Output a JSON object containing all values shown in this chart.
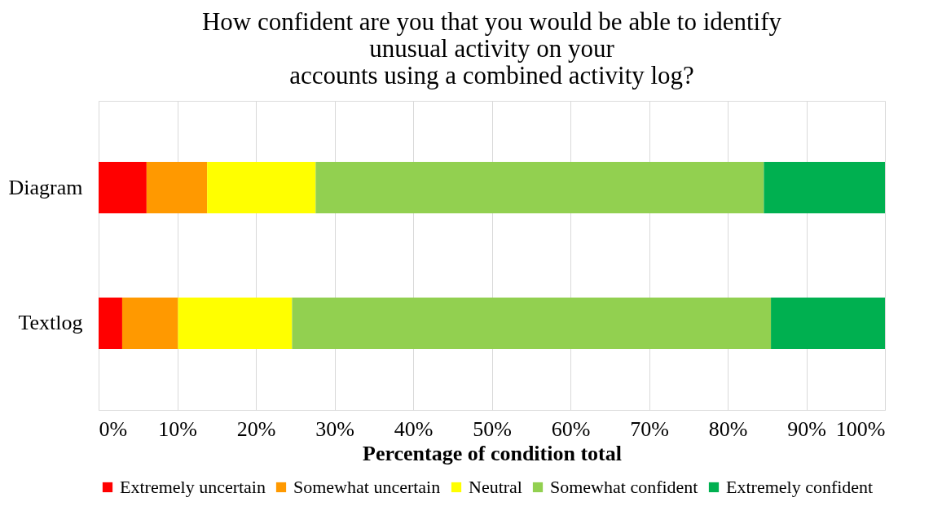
{
  "chart_data": {
    "type": "bar",
    "orientation": "horizontal",
    "stacked": true,
    "title": [
      "How confident are you that you would be able to identify",
      "unusual activity on your",
      "accounts using a combined activity log?"
    ],
    "xlabel": "Percentage  of  condition  total",
    "categories": [
      "Diagram",
      "Textlog"
    ],
    "series": [
      {
        "name": "Extremely uncertain",
        "color": "#ff0000",
        "values": [
          6.1,
          3.0
        ]
      },
      {
        "name": "Somewhat uncertain",
        "color": "#ff9900",
        "values": [
          7.7,
          7.1
        ]
      },
      {
        "name": "Neutral",
        "color": "#ffff00",
        "values": [
          13.8,
          14.5
        ]
      },
      {
        "name": "Somewhat confident",
        "color": "#92d050",
        "values": [
          57.0,
          60.9
        ]
      },
      {
        "name": "Extremely confident",
        "color": "#00b050",
        "values": [
          15.4,
          14.5
        ]
      }
    ],
    "xlim": [
      0,
      100
    ],
    "xticks": [
      {
        "value": 0,
        "label": "0%"
      },
      {
        "value": 10,
        "label": "10%"
      },
      {
        "value": 20,
        "label": "20%"
      },
      {
        "value": 30,
        "label": "30%"
      },
      {
        "value": 40,
        "label": "40%"
      },
      {
        "value": 50,
        "label": "50%"
      },
      {
        "value": 60,
        "label": "60%"
      },
      {
        "value": 70,
        "label": "70%"
      },
      {
        "value": 80,
        "label": "80%"
      },
      {
        "value": 90,
        "label": "90%"
      },
      {
        "value": 100,
        "label": "100%"
      }
    ],
    "grid": "x",
    "legend": "bottom"
  }
}
